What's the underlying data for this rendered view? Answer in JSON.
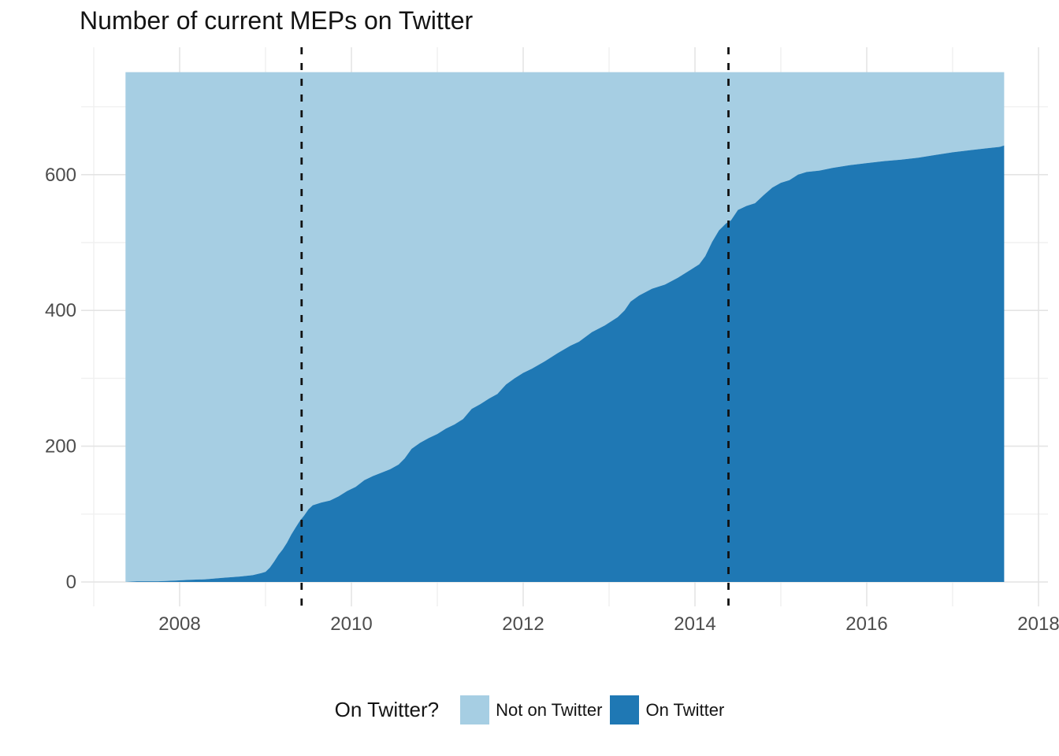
{
  "chart_data": {
    "type": "area",
    "title": "Number of current MEPs on Twitter",
    "legend_title": "On Twitter?",
    "legend_position": "bottom",
    "grid": true,
    "total_meps": 751,
    "series": [
      {
        "name": "Not on Twitter",
        "color": "#A6CEE3"
      },
      {
        "name": "On Twitter",
        "color": "#1F78B4"
      }
    ],
    "x_ticks": [
      "2008",
      "2010",
      "2012",
      "2014",
      "2016",
      "2018"
    ],
    "x_tick_values": [
      2008,
      2010,
      2012,
      2014,
      2016,
      2018
    ],
    "x_minor_values": [
      2007,
      2009,
      2011,
      2013,
      2015,
      2017
    ],
    "y_ticks": [
      "0",
      "200",
      "400",
      "600"
    ],
    "y_tick_values": [
      0,
      200,
      400,
      600
    ],
    "y_minor_values": [
      100,
      300,
      500,
      700
    ],
    "xlim": [
      2006.85,
      2018.11
    ],
    "ylim": [
      -36,
      788
    ],
    "x_data_range": [
      2007.37,
      2017.6
    ],
    "vlines": [
      2009.42,
      2014.39
    ],
    "axis_text_color": "#4D4D4D",
    "vline_color": "#111111",
    "on_twitter_cumulative": [
      [
        2007.37,
        0
      ],
      [
        2007.5,
        1
      ],
      [
        2007.75,
        1
      ],
      [
        2007.95,
        2
      ],
      [
        2008.1,
        3
      ],
      [
        2008.3,
        4
      ],
      [
        2008.5,
        6
      ],
      [
        2008.7,
        8
      ],
      [
        2008.85,
        10
      ],
      [
        2008.95,
        13
      ],
      [
        2009.0,
        15
      ],
      [
        2009.05,
        21
      ],
      [
        2009.1,
        30
      ],
      [
        2009.15,
        40
      ],
      [
        2009.2,
        48
      ],
      [
        2009.25,
        58
      ],
      [
        2009.3,
        70
      ],
      [
        2009.35,
        80
      ],
      [
        2009.4,
        90
      ],
      [
        2009.45,
        98
      ],
      [
        2009.5,
        107
      ],
      [
        2009.55,
        113
      ],
      [
        2009.65,
        117
      ],
      [
        2009.75,
        120
      ],
      [
        2009.85,
        126
      ],
      [
        2009.95,
        134
      ],
      [
        2010.05,
        140
      ],
      [
        2010.15,
        150
      ],
      [
        2010.25,
        156
      ],
      [
        2010.35,
        161
      ],
      [
        2010.45,
        166
      ],
      [
        2010.55,
        173
      ],
      [
        2010.62,
        182
      ],
      [
        2010.7,
        196
      ],
      [
        2010.8,
        205
      ],
      [
        2010.9,
        212
      ],
      [
        2011.0,
        218
      ],
      [
        2011.1,
        226
      ],
      [
        2011.2,
        232
      ],
      [
        2011.3,
        240
      ],
      [
        2011.4,
        255
      ],
      [
        2011.5,
        262
      ],
      [
        2011.6,
        270
      ],
      [
        2011.7,
        277
      ],
      [
        2011.8,
        291
      ],
      [
        2011.9,
        300
      ],
      [
        2012.0,
        308
      ],
      [
        2012.1,
        314
      ],
      [
        2012.25,
        325
      ],
      [
        2012.4,
        337
      ],
      [
        2012.55,
        348
      ],
      [
        2012.65,
        354
      ],
      [
        2012.8,
        368
      ],
      [
        2012.95,
        378
      ],
      [
        2013.1,
        390
      ],
      [
        2013.18,
        400
      ],
      [
        2013.25,
        413
      ],
      [
        2013.35,
        422
      ],
      [
        2013.5,
        432
      ],
      [
        2013.65,
        438
      ],
      [
        2013.8,
        448
      ],
      [
        2013.95,
        460
      ],
      [
        2014.05,
        468
      ],
      [
        2014.12,
        480
      ],
      [
        2014.2,
        501
      ],
      [
        2014.28,
        518
      ],
      [
        2014.36,
        528
      ],
      [
        2014.42,
        533
      ],
      [
        2014.5,
        548
      ],
      [
        2014.6,
        554
      ],
      [
        2014.7,
        558
      ],
      [
        2014.8,
        570
      ],
      [
        2014.9,
        581
      ],
      [
        2015.0,
        588
      ],
      [
        2015.1,
        592
      ],
      [
        2015.2,
        600
      ],
      [
        2015.3,
        604
      ],
      [
        2015.45,
        606
      ],
      [
        2015.6,
        610
      ],
      [
        2015.8,
        614
      ],
      [
        2016.0,
        617
      ],
      [
        2016.2,
        620
      ],
      [
        2016.4,
        622
      ],
      [
        2016.6,
        625
      ],
      [
        2016.8,
        629
      ],
      [
        2017.0,
        633
      ],
      [
        2017.2,
        636
      ],
      [
        2017.4,
        639
      ],
      [
        2017.55,
        641
      ],
      [
        2017.6,
        643
      ]
    ]
  }
}
